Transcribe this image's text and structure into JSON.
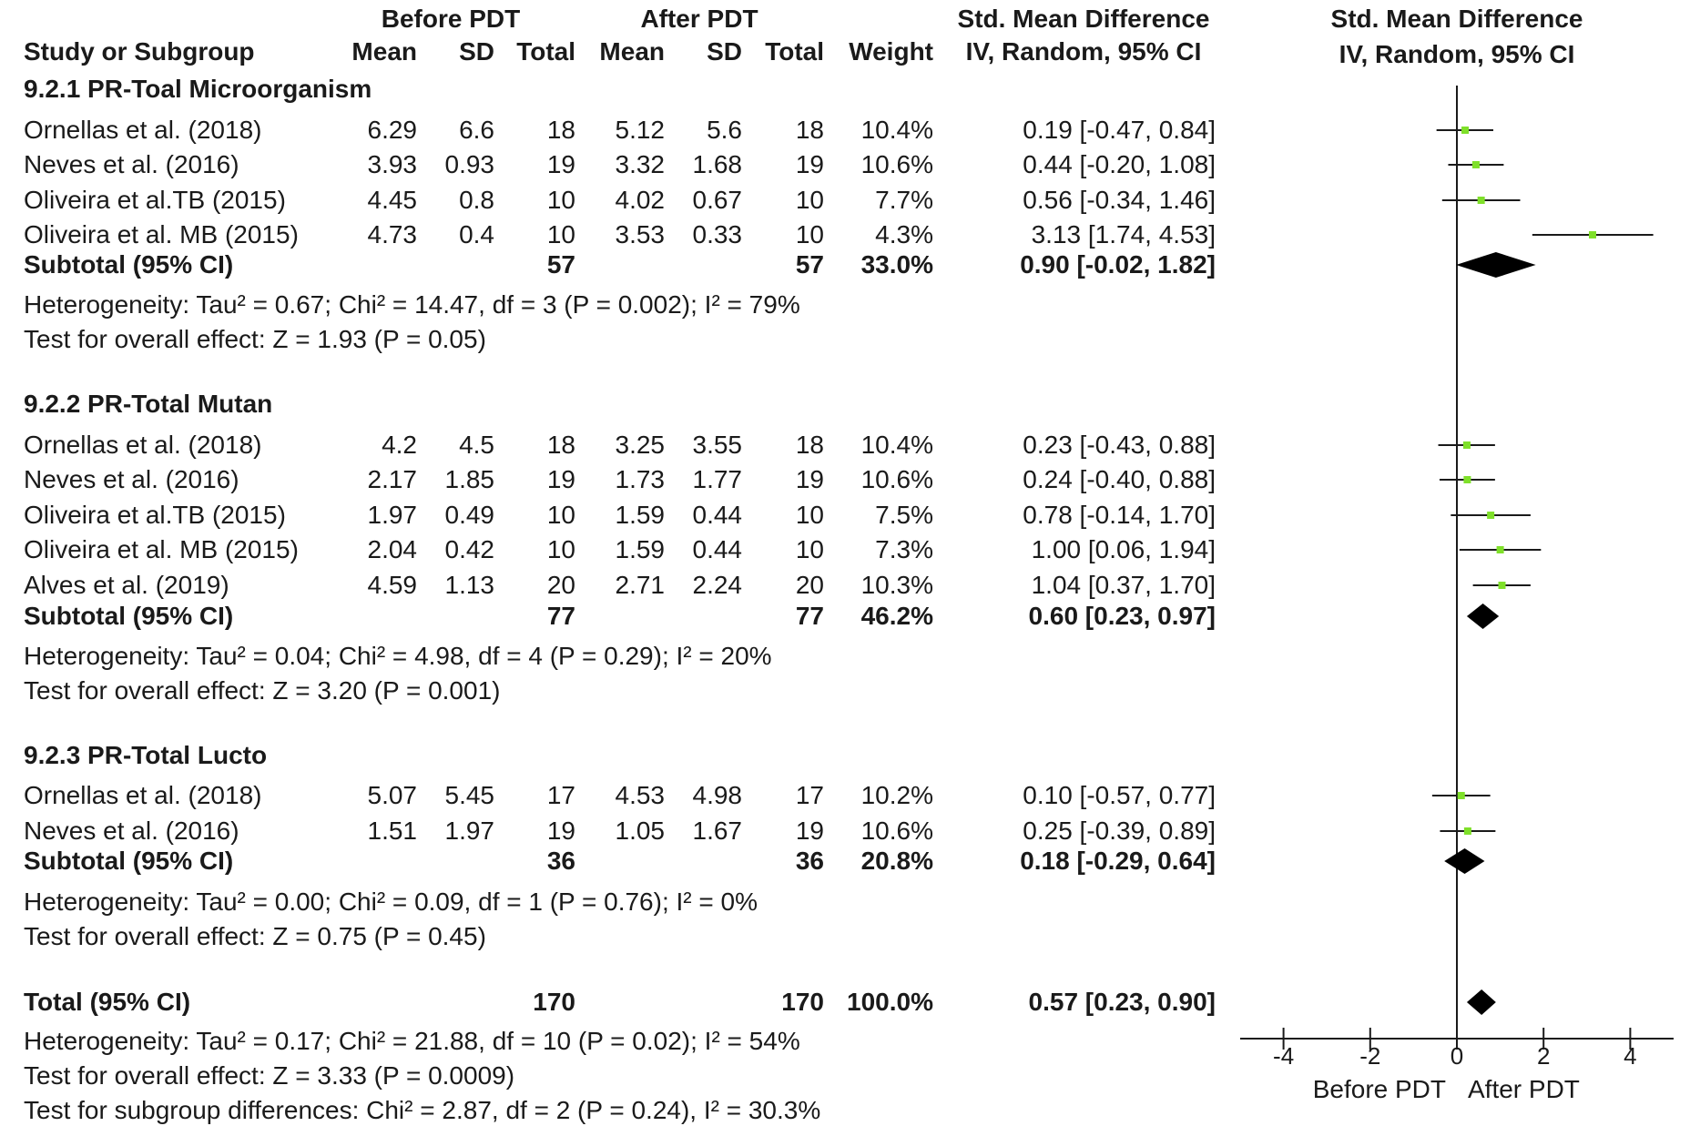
{
  "header": {
    "group1": "Before PDT",
    "group2": "After PDT",
    "effect_title": "Std. Mean Difference",
    "effect_method": "IV, Random, 95% CI",
    "plot_title": "Std. Mean Difference",
    "plot_method": "IV, Random, 95% CI",
    "col_study": "Study or Subgroup",
    "col_mean1": "Mean",
    "col_sd1": "SD",
    "col_total1": "Total",
    "col_mean2": "Mean",
    "col_sd2": "SD",
    "col_total2": "Total",
    "col_weight": "Weight"
  },
  "subgroups": [
    {
      "title": "9.2.1 PR-Toal Microorganism",
      "studies": [
        {
          "name": "Ornellas et al. (2018)",
          "m1": "6.29",
          "sd1": "6.6",
          "n1": "18",
          "m2": "5.12",
          "sd2": "5.6",
          "n2": "18",
          "weight": "10.4%",
          "ci": "0.19 [-0.47, 0.84]"
        },
        {
          "name": "Neves et al. (2016)",
          "m1": "3.93",
          "sd1": "0.93",
          "n1": "19",
          "m2": "3.32",
          "sd2": "1.68",
          "n2": "19",
          "weight": "10.6%",
          "ci": "0.44 [-0.20, 1.08]"
        },
        {
          "name": "Oliveira et al.TB (2015)",
          "m1": "4.45",
          "sd1": "0.8",
          "n1": "10",
          "m2": "4.02",
          "sd2": "0.67",
          "n2": "10",
          "weight": "7.7%",
          "ci": "0.56 [-0.34, 1.46]"
        },
        {
          "name": "Oliveira et al. MB (2015)",
          "m1": "4.73",
          "sd1": "0.4",
          "n1": "10",
          "m2": "3.53",
          "sd2": "0.33",
          "n2": "10",
          "weight": "4.3%",
          "ci": "3.13 [1.74, 4.53]"
        }
      ],
      "subtotal": {
        "label": "Subtotal (95% CI)",
        "n1": "57",
        "n2": "57",
        "weight": "33.0%",
        "ci": "0.90 [-0.02, 1.82]"
      },
      "heterogeneity": "Heterogeneity: Tau² = 0.67; Chi² = 14.47, df = 3 (P = 0.002); I² = 79%",
      "overall": "Test for overall effect: Z = 1.93 (P = 0.05)"
    },
    {
      "title": "9.2.2 PR-Total Mutan",
      "studies": [
        {
          "name": "Ornellas et al. (2018)",
          "m1": "4.2",
          "sd1": "4.5",
          "n1": "18",
          "m2": "3.25",
          "sd2": "3.55",
          "n2": "18",
          "weight": "10.4%",
          "ci": "0.23 [-0.43, 0.88]"
        },
        {
          "name": "Neves et al. (2016)",
          "m1": "2.17",
          "sd1": "1.85",
          "n1": "19",
          "m2": "1.73",
          "sd2": "1.77",
          "n2": "19",
          "weight": "10.6%",
          "ci": "0.24 [-0.40, 0.88]"
        },
        {
          "name": "Oliveira et al.TB (2015)",
          "m1": "1.97",
          "sd1": "0.49",
          "n1": "10",
          "m2": "1.59",
          "sd2": "0.44",
          "n2": "10",
          "weight": "7.5%",
          "ci": "0.78 [-0.14, 1.70]"
        },
        {
          "name": "Oliveira et al. MB (2015)",
          "m1": "2.04",
          "sd1": "0.42",
          "n1": "10",
          "m2": "1.59",
          "sd2": "0.44",
          "n2": "10",
          "weight": "7.3%",
          "ci": "1.00 [0.06, 1.94]"
        },
        {
          "name": "Alves et al. (2019)",
          "m1": "4.59",
          "sd1": "1.13",
          "n1": "20",
          "m2": "2.71",
          "sd2": "2.24",
          "n2": "20",
          "weight": "10.3%",
          "ci": "1.04 [0.37, 1.70]"
        }
      ],
      "subtotal": {
        "label": "Subtotal (95% CI)",
        "n1": "77",
        "n2": "77",
        "weight": "46.2%",
        "ci": "0.60 [0.23, 0.97]"
      },
      "heterogeneity": "Heterogeneity: Tau² = 0.04; Chi² = 4.98, df = 4 (P = 0.29); I² = 20%",
      "overall": "Test for overall effect: Z = 3.20 (P = 0.001)"
    },
    {
      "title": "9.2.3 PR-Total Lucto",
      "studies": [
        {
          "name": "Ornellas et al. (2018)",
          "m1": "5.07",
          "sd1": "5.45",
          "n1": "17",
          "m2": "4.53",
          "sd2": "4.98",
          "n2": "17",
          "weight": "10.2%",
          "ci": "0.10 [-0.57, 0.77]"
        },
        {
          "name": "Neves et al. (2016)",
          "m1": "1.51",
          "sd1": "1.97",
          "n1": "19",
          "m2": "1.05",
          "sd2": "1.67",
          "n2": "19",
          "weight": "10.6%",
          "ci": "0.25 [-0.39, 0.89]"
        }
      ],
      "subtotal": {
        "label": "Subtotal (95% CI)",
        "n1": "36",
        "n2": "36",
        "weight": "20.8%",
        "ci": "0.18 [-0.29, 0.64]"
      },
      "heterogeneity": "Heterogeneity: Tau² = 0.00; Chi² = 0.09, df = 1 (P = 0.76); I² = 0%",
      "overall": "Test for overall effect: Z = 0.75 (P = 0.45)"
    }
  ],
  "total": {
    "label": "Total (95% CI)",
    "n1": "170",
    "n2": "170",
    "weight": "100.0%",
    "ci": "0.57 [0.23, 0.90]",
    "heterogeneity": "Heterogeneity: Tau² = 0.17; Chi² = 21.88, df = 10 (P = 0.02); I² = 54%",
    "overall": "Test for overall effect: Z = 3.33 (P = 0.0009)",
    "subgroup_diff": "Test for subgroup differences: Chi² = 2.87, df = 2 (P = 0.24), I² = 30.3%"
  },
  "chart_data": {
    "type": "forest",
    "x_range": [
      -5,
      5
    ],
    "ticks": [
      -4,
      -2,
      0,
      2,
      4
    ],
    "tick_labels": [
      "-4",
      "-2",
      "0",
      "2",
      "4"
    ],
    "favours_left": "Before PDT",
    "favours_right": "After PDT",
    "colors": {
      "point": "#7fe02a",
      "line": "#1a1a1a",
      "diamond": "#000000"
    },
    "studies": [
      {
        "name": "Ornellas et al. (2018)",
        "subgroup": 0,
        "est": 0.19,
        "lo": -0.47,
        "hi": 0.84,
        "weight": 10.4
      },
      {
        "name": "Neves et al. (2016)",
        "subgroup": 0,
        "est": 0.44,
        "lo": -0.2,
        "hi": 1.08,
        "weight": 10.6
      },
      {
        "name": "Oliveira et al.TB (2015)",
        "subgroup": 0,
        "est": 0.56,
        "lo": -0.34,
        "hi": 1.46,
        "weight": 7.7
      },
      {
        "name": "Oliveira et al. MB (2015)",
        "subgroup": 0,
        "est": 3.13,
        "lo": 1.74,
        "hi": 4.53,
        "weight": 4.3
      },
      {
        "name": "Ornellas et al. (2018)",
        "subgroup": 1,
        "est": 0.23,
        "lo": -0.43,
        "hi": 0.88,
        "weight": 10.4
      },
      {
        "name": "Neves et al. (2016)",
        "subgroup": 1,
        "est": 0.24,
        "lo": -0.4,
        "hi": 0.88,
        "weight": 10.6
      },
      {
        "name": "Oliveira et al.TB (2015)",
        "subgroup": 1,
        "est": 0.78,
        "lo": -0.14,
        "hi": 1.7,
        "weight": 7.5
      },
      {
        "name": "Oliveira et al. MB (2015)",
        "subgroup": 1,
        "est": 1.0,
        "lo": 0.06,
        "hi": 1.94,
        "weight": 7.3
      },
      {
        "name": "Alves et al. (2019)",
        "subgroup": 1,
        "est": 1.04,
        "lo": 0.37,
        "hi": 1.7,
        "weight": 10.3
      },
      {
        "name": "Ornellas et al. (2018)",
        "subgroup": 2,
        "est": 0.1,
        "lo": -0.57,
        "hi": 0.77,
        "weight": 10.2
      },
      {
        "name": "Neves et al. (2016)",
        "subgroup": 2,
        "est": 0.25,
        "lo": -0.39,
        "hi": 0.89,
        "weight": 10.6
      }
    ],
    "subtotals": [
      {
        "subgroup": 0,
        "est": 0.9,
        "lo": -0.02,
        "hi": 1.82
      },
      {
        "subgroup": 1,
        "est": 0.6,
        "lo": 0.23,
        "hi": 0.97
      },
      {
        "subgroup": 2,
        "est": 0.18,
        "lo": -0.29,
        "hi": 0.64
      }
    ],
    "overall": {
      "est": 0.57,
      "lo": 0.23,
      "hi": 0.9
    }
  }
}
